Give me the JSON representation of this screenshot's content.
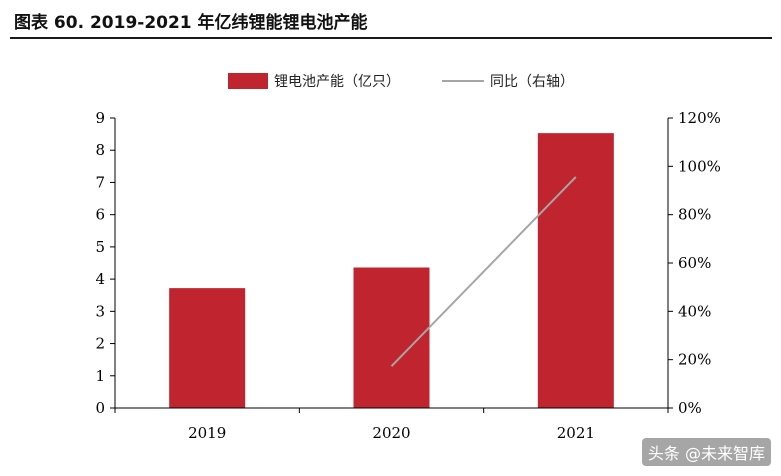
{
  "header": {
    "title": "图表 60. 2019-2021 年亿纬锂能锂电池产能"
  },
  "watermark": "头条 @未来智库",
  "colors": {
    "bar": "#c0242f",
    "line": "#a6a6a6",
    "axis": "#000000"
  },
  "chart_data": {
    "type": "bar",
    "categories": [
      "2019",
      "2020",
      "2021"
    ],
    "series": [
      {
        "name": "锂电池产能（亿只）",
        "type": "bar",
        "axis": "left",
        "values": [
          3.72,
          4.36,
          8.53
        ]
      },
      {
        "name": "同比（右轴）",
        "type": "line",
        "axis": "right",
        "values": [
          null,
          17.3,
          95.6
        ]
      }
    ],
    "left_axis": {
      "min": 0,
      "max": 9,
      "ticks": [
        "0",
        "1",
        "2",
        "3",
        "4",
        "5",
        "6",
        "7",
        "8",
        "9"
      ]
    },
    "right_axis": {
      "min": 0,
      "max": 120,
      "ticks": [
        "0%",
        "20%",
        "40%",
        "60%",
        "80%",
        "100%",
        "120%"
      ]
    },
    "legend": "top-center",
    "grid": false
  }
}
